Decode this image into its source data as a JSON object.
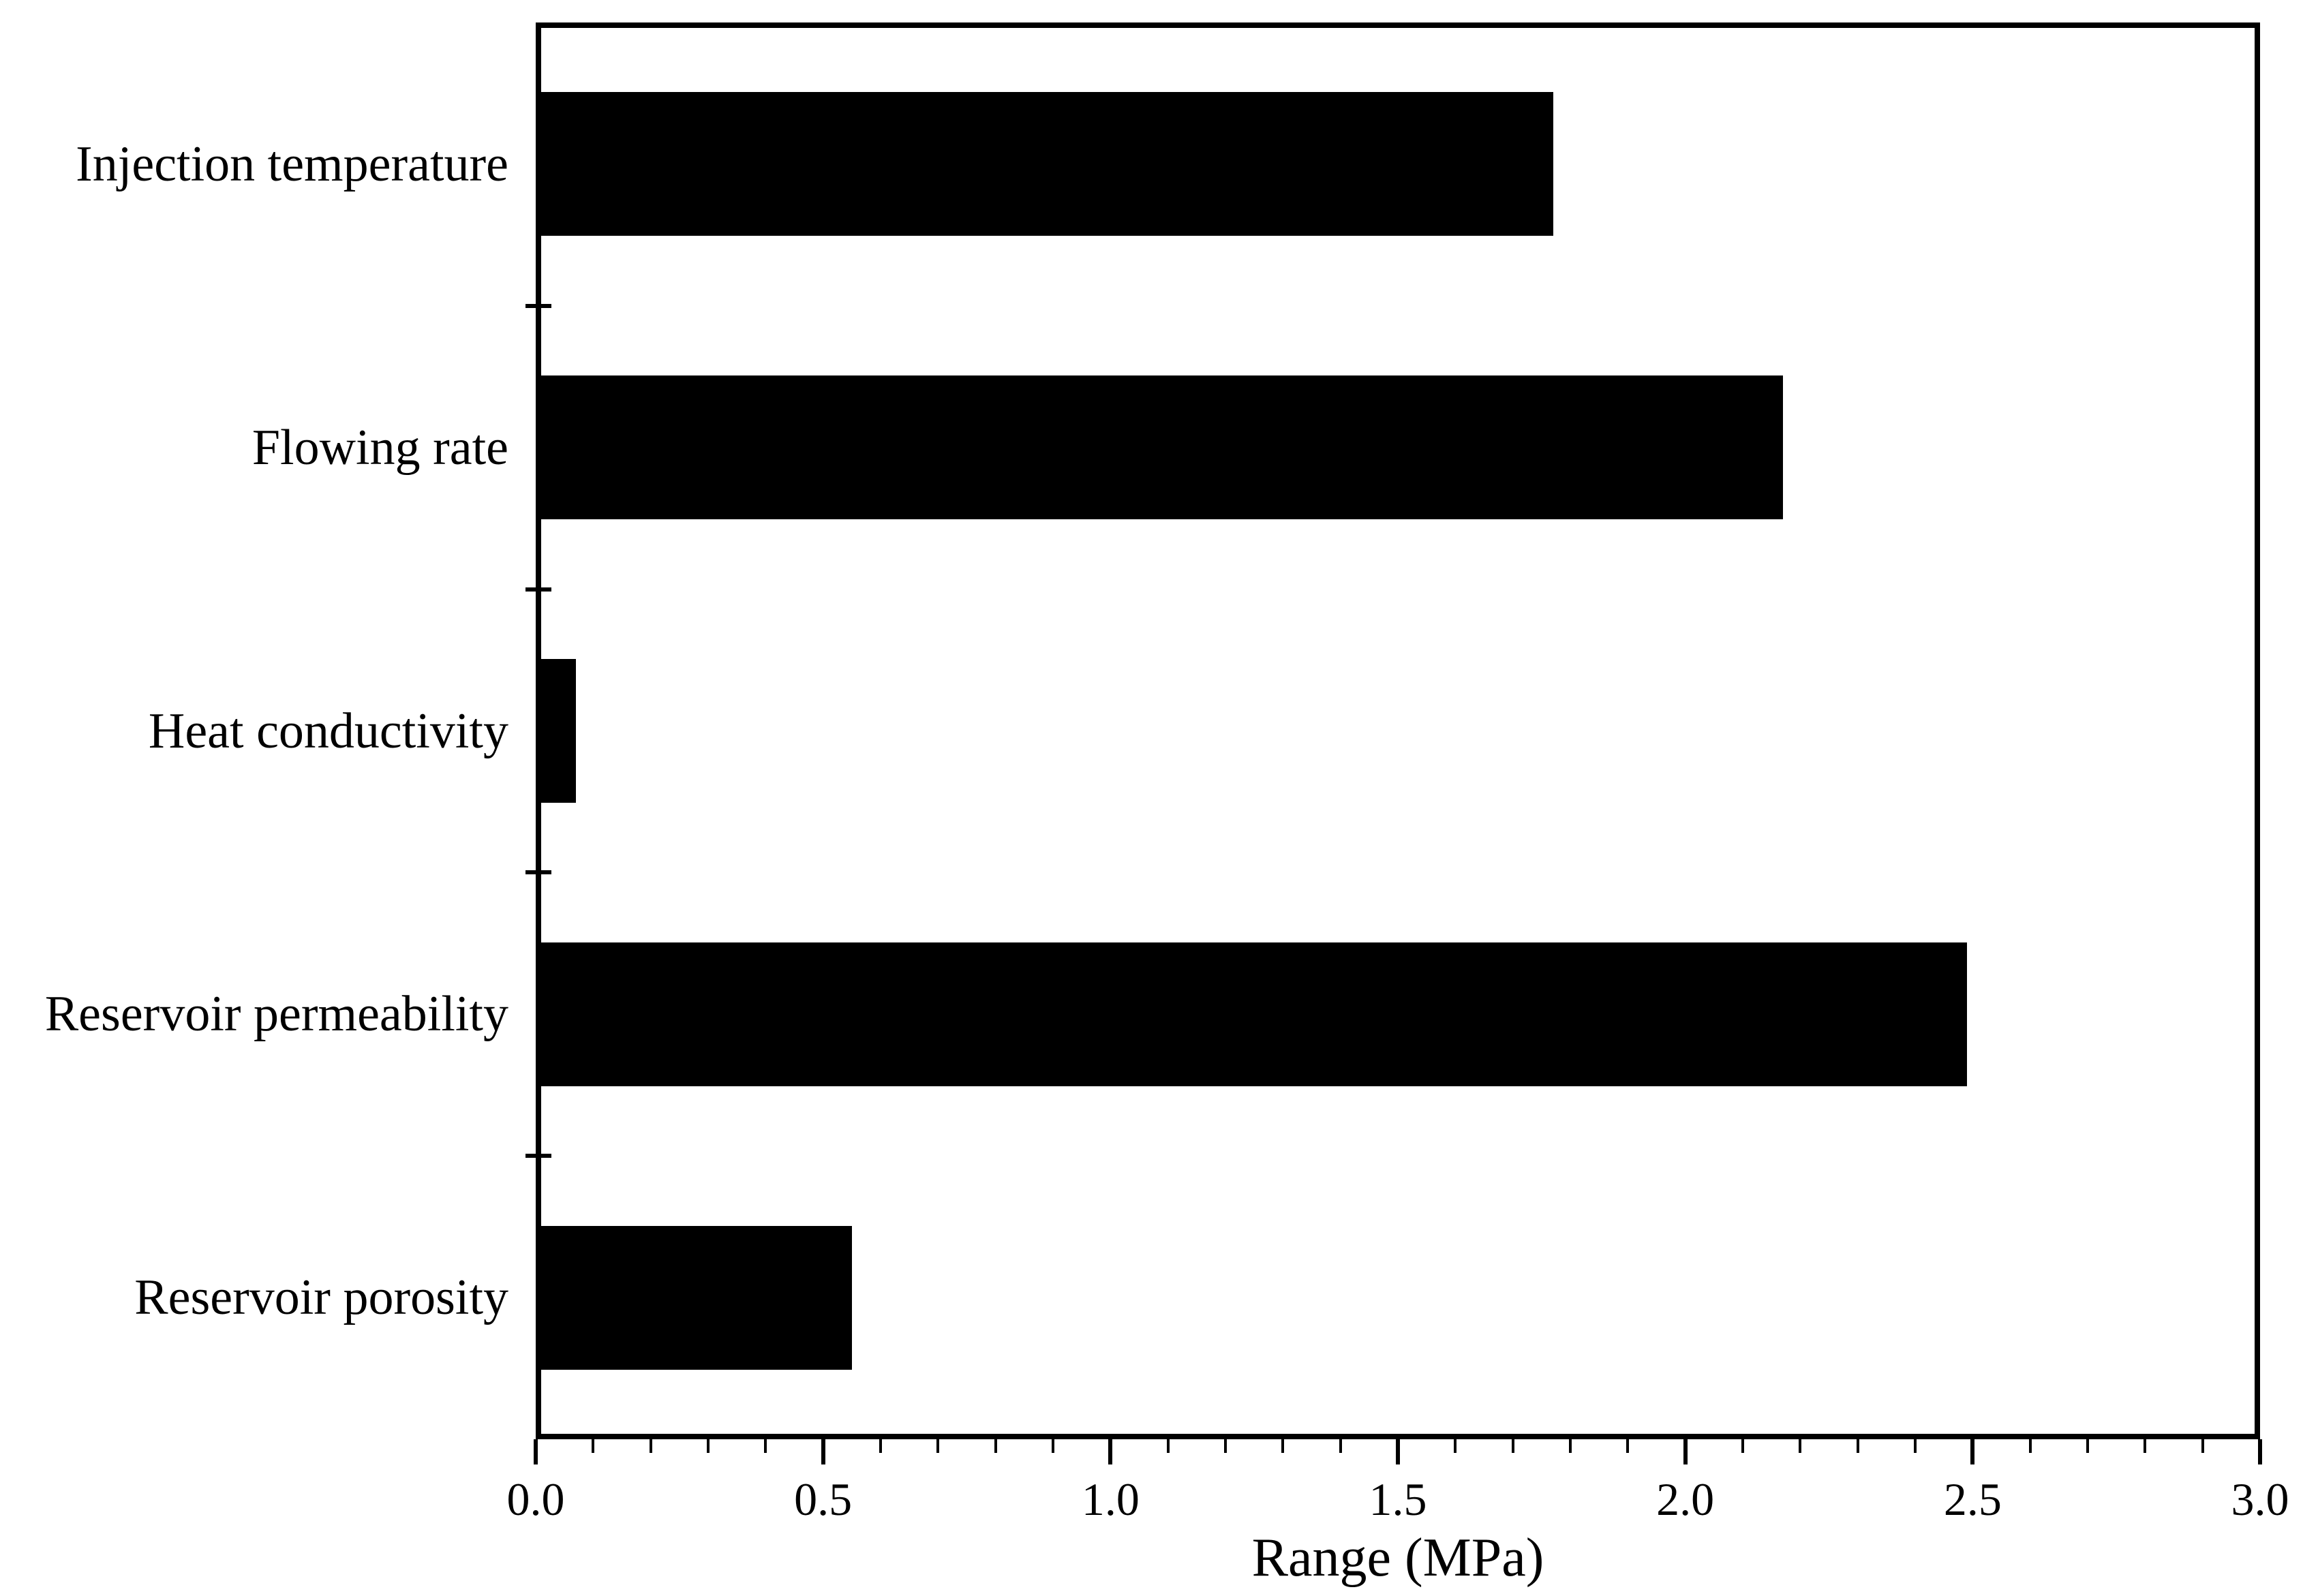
{
  "chart_data": {
    "type": "bar",
    "orientation": "horizontal",
    "categories": [
      "Injection temperature",
      "Flowing rate",
      "Heat conductivity",
      "Reservoir permeability",
      "Reservoir porosity"
    ],
    "values": [
      1.77,
      2.17,
      0.07,
      2.49,
      0.55
    ],
    "title": "",
    "xlabel": "Range (MPa)",
    "ylabel": "",
    "xlim": [
      0.0,
      3.0
    ],
    "x_major_tick_labels": [
      "0.0",
      "0.5",
      "1.0",
      "1.5",
      "2.0",
      "2.5",
      "3.0"
    ],
    "x_major_tick_step": 0.5,
    "x_minor_tick_step": 0.1,
    "grid": false,
    "legend": "none",
    "bar_color": "#000000",
    "axis_color": "#000000",
    "background_color": "#ffffff"
  }
}
